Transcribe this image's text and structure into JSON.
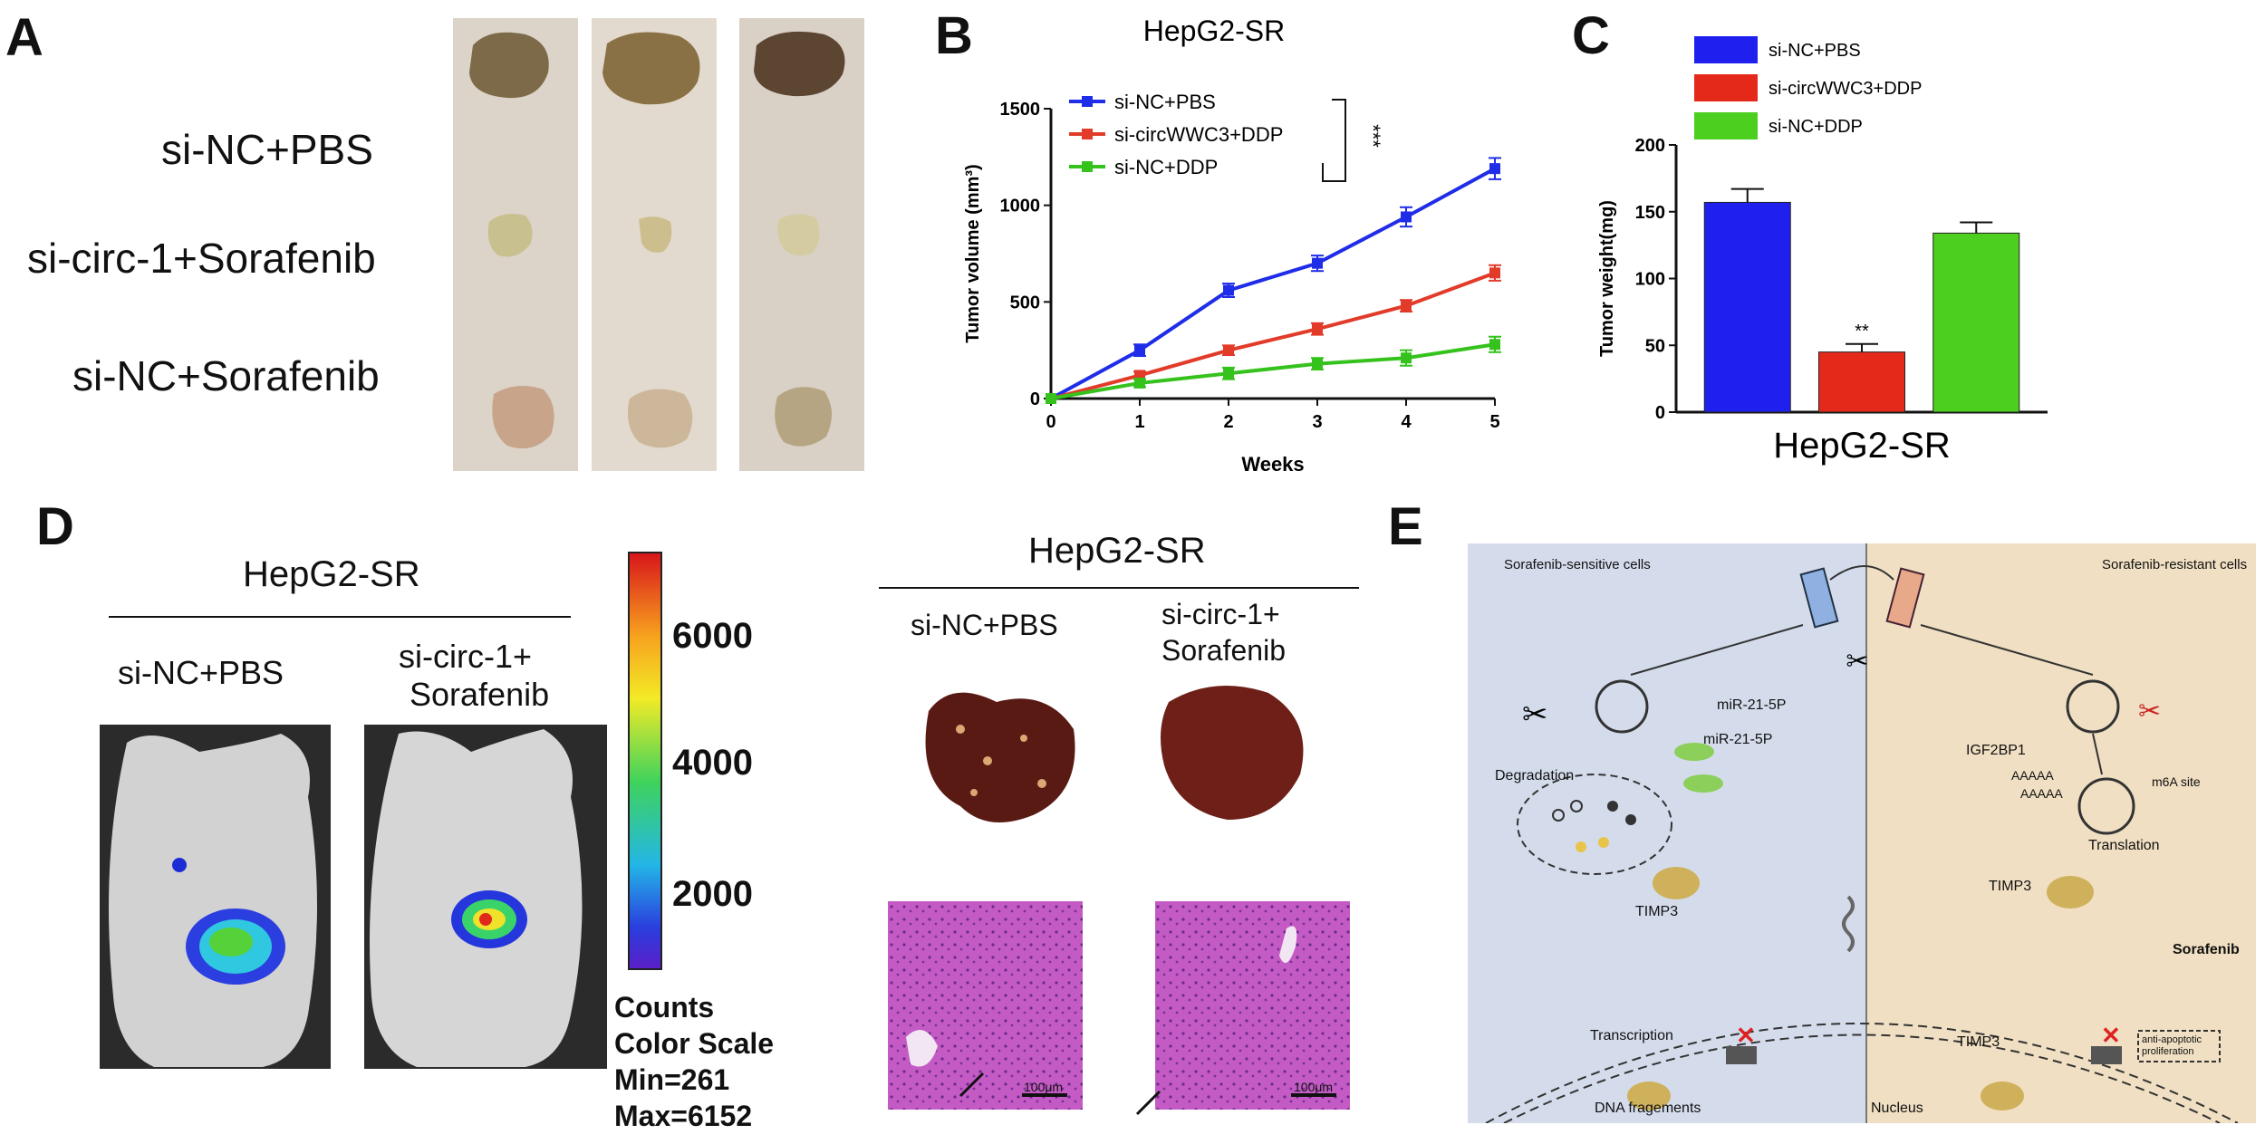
{
  "panels": {
    "a": {
      "label": "A",
      "groups": [
        "si-NC+PBS",
        "si-circ-1+Sorafenib",
        "si-NC+Sorafenib"
      ]
    },
    "b": {
      "label": "B"
    },
    "c": {
      "label": "C"
    },
    "d": {
      "label": "D",
      "left_title": "HepG2-SR",
      "left_groups": [
        "si-NC+PBS",
        "si-circ-1+",
        "Sorafenib"
      ],
      "colorbar_ticks": [
        "6000",
        "4000",
        "2000"
      ],
      "counts": [
        "Counts",
        "Color Scale",
        "Min=261",
        "Max=6152"
      ],
      "right_title": "HepG2-SR",
      "right_groups": [
        "si-NC+PBS",
        "si-circ-1+",
        "Sorafenib"
      ],
      "scale_bar": "100μm"
    },
    "e": {
      "label": "E",
      "left_header": "Sorafenib-sensitive cells",
      "right_header": "Sorafenib-resistant cells",
      "labels": {
        "mir1": "miR-21-5P",
        "mir2": "miR-21-5P",
        "degradation": "Degradation",
        "igf": "IGF2BP1",
        "aaaa1": "AAAAA",
        "aaaa2": "AAAAA",
        "m6a": "m6A site",
        "translation": "Translation",
        "timp_left": "TIMP3",
        "timp_mid": "TIMP3",
        "timp_right": "TIMP3",
        "sorafenib": "Sorafenib",
        "transcription": "Transcription",
        "dna": "DNA fragements",
        "nucleus": "Nucleus",
        "box": "anti-apoptotic proliferation"
      }
    }
  },
  "chart_data": [
    {
      "type": "line",
      "title": "HepG2-SR",
      "xlabel": "Weeks",
      "ylabel": "Tumor volume (mm³)",
      "x": [
        0,
        1,
        2,
        3,
        4,
        5
      ],
      "xlim": [
        0,
        5
      ],
      "ylim": [
        0,
        1500
      ],
      "yticks": [
        0,
        500,
        1000,
        1500
      ],
      "legend_position": "top-left",
      "significance": "***",
      "series": [
        {
          "name": "si-NC+PBS",
          "color": "#1f2de8",
          "values": [
            0,
            250,
            560,
            700,
            940,
            1190
          ],
          "errors": [
            0,
            30,
            35,
            40,
            50,
            55
          ]
        },
        {
          "name": "si-circWWC3+DDP",
          "color": "#e23b2a",
          "values": [
            0,
            120,
            250,
            360,
            480,
            650
          ],
          "errors": [
            0,
            20,
            25,
            30,
            30,
            40
          ]
        },
        {
          "name": "si-NC+DDP",
          "color": "#35c21d",
          "values": [
            0,
            80,
            130,
            180,
            210,
            280
          ],
          "errors": [
            0,
            20,
            30,
            30,
            40,
            40
          ]
        }
      ]
    },
    {
      "type": "bar",
      "xlabel": "HepG2-SR",
      "ylabel": "Tumor weight(mg)",
      "ylim": [
        0,
        200
      ],
      "yticks": [
        0,
        50,
        100,
        150,
        200
      ],
      "legend_position": "top",
      "categories": [
        "si-NC+PBS",
        "si-circWWC3+DDP",
        "si-NC+DDP"
      ],
      "values": [
        157,
        45,
        134
      ],
      "errors": [
        10,
        6,
        8
      ],
      "colors": [
        "#2020ee",
        "#e4291b",
        "#4ccf1e"
      ],
      "annotation": "**"
    }
  ]
}
